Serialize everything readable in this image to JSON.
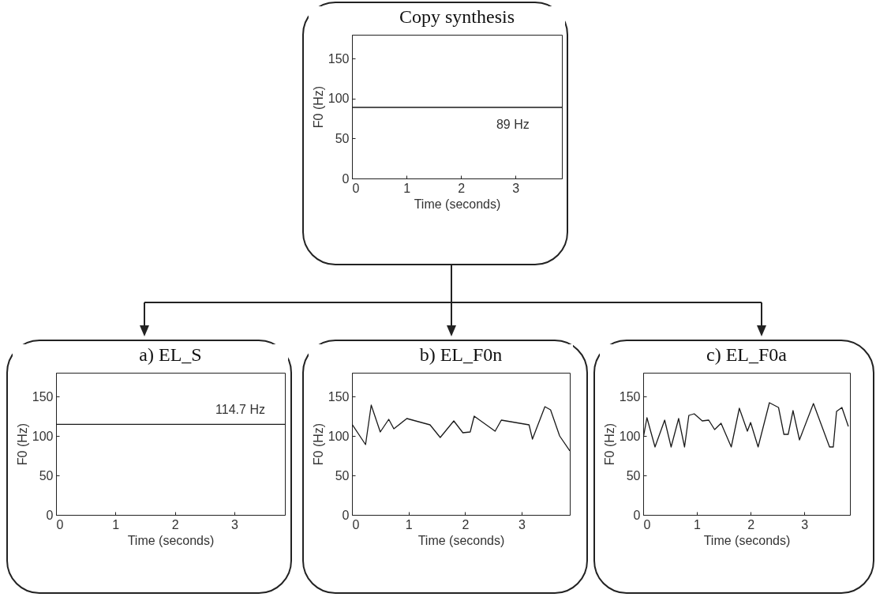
{
  "chart_data": [
    {
      "type": "line",
      "title": "Copy synthesis",
      "xlabel": "Time (seconds)",
      "ylabel": "F0 (Hz)",
      "xlim": [
        0,
        3.85
      ],
      "ylim": [
        0,
        180
      ],
      "xticks": [
        0,
        1,
        2,
        3
      ],
      "yticks": [
        0,
        50,
        100,
        150
      ],
      "grid": false,
      "annotations": [
        {
          "text": "89 Hz",
          "x": 2.95,
          "y": 89
        }
      ],
      "series": [
        {
          "color": "#1a1a1a",
          "x": [
            0,
            3.85
          ],
          "values": [
            89,
            89
          ]
        }
      ]
    },
    {
      "type": "line",
      "title": "a)  EL_S",
      "xlabel": "Time (seconds)",
      "ylabel": "F0 (Hz)",
      "xlim": [
        0,
        3.85
      ],
      "ylim": [
        0,
        180
      ],
      "xticks": [
        0,
        1,
        2,
        3
      ],
      "yticks": [
        0,
        50,
        100,
        150
      ],
      "grid": false,
      "annotations": [
        {
          "text": "114.7 Hz",
          "x": 3.1,
          "y": 114.7
        }
      ],
      "series": [
        {
          "color": "#1a1a1a",
          "x": [
            0,
            3.85
          ],
          "values": [
            114.7,
            114.7
          ]
        }
      ]
    },
    {
      "type": "line",
      "title": "b)  EL_F0n",
      "xlabel": "Time (seconds)",
      "ylabel": "F0 (Hz)",
      "xlim": [
        0,
        3.85
      ],
      "ylim": [
        0,
        180
      ],
      "xticks": [
        0,
        1,
        2,
        3
      ],
      "yticks": [
        0,
        50,
        100,
        150
      ],
      "grid": false,
      "series": [
        {
          "color": "#1a1a1a",
          "x": [
            0,
            0.24,
            0.34,
            0.5,
            0.65,
            0.74,
            0.97,
            1.38,
            1.56,
            1.8,
            1.96,
            2.09,
            2.16,
            2.53,
            2.64,
            3.13,
            3.19,
            3.41,
            3.51,
            3.67,
            3.85
          ],
          "values": [
            115,
            89,
            139,
            105,
            121,
            109,
            122,
            114,
            98,
            119,
            104,
            105,
            125,
            106,
            120,
            114,
            96,
            137,
            133,
            100,
            81
          ]
        }
      ]
    },
    {
      "type": "line",
      "title": "c)  EL_F0a",
      "xlabel": "Time (seconds)",
      "ylabel": "F0 (Hz)",
      "xlim": [
        0,
        3.85
      ],
      "ylim": [
        0,
        180
      ],
      "xticks": [
        0,
        1,
        2,
        3
      ],
      "yticks": [
        0,
        50,
        100,
        150
      ],
      "grid": false,
      "series": [
        {
          "color": "#1a1a1a",
          "x": [
            0,
            0.07,
            0.22,
            0.4,
            0.52,
            0.66,
            0.77,
            0.85,
            0.95,
            1.1,
            1.22,
            1.33,
            1.45,
            1.64,
            1.79,
            1.94,
            2.0,
            2.14,
            2.35,
            2.52,
            2.62,
            2.7,
            2.79,
            2.91,
            3.17,
            3.47,
            3.54,
            3.6,
            3.7,
            3.82
          ],
          "values": [
            97,
            123,
            86,
            120,
            86,
            122,
            86,
            126,
            128,
            119,
            120,
            108,
            116,
            86,
            135,
            106,
            117,
            86,
            142,
            136,
            102,
            102,
            132,
            95,
            141,
            86,
            86,
            131,
            136,
            112
          ]
        }
      ]
    }
  ]
}
